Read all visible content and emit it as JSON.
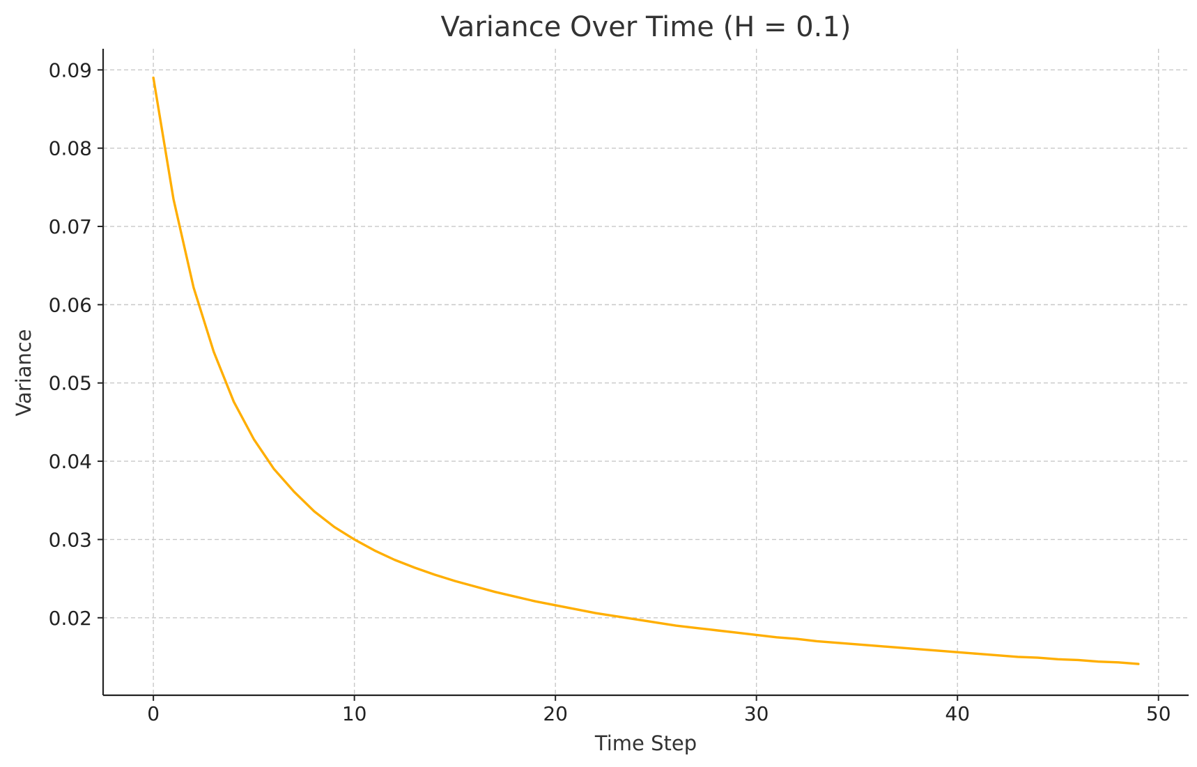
{
  "chart_data": {
    "type": "line",
    "title": "Variance Over Time (H = 0.1)",
    "xlabel": "Time Step",
    "ylabel": "Variance",
    "xlim": [
      -2.5,
      51.5
    ],
    "ylim": [
      0.0101,
      0.0927
    ],
    "xticks": [
      0,
      10,
      20,
      30,
      40,
      50
    ],
    "xtick_labels": [
      "0",
      "10",
      "20",
      "30",
      "40",
      "50"
    ],
    "yticks": [
      0.02,
      0.03,
      0.04,
      0.05,
      0.06,
      0.07,
      0.08,
      0.09
    ],
    "ytick_labels": [
      "0.02",
      "0.03",
      "0.04",
      "0.05",
      "0.06",
      "0.07",
      "0.08",
      "0.09"
    ],
    "grid": true,
    "series": [
      {
        "color": "#FFAE00",
        "x": [
          0,
          1,
          2,
          3,
          4,
          5,
          6,
          7,
          8,
          9,
          10,
          11,
          12,
          13,
          14,
          15,
          16,
          17,
          18,
          19,
          20,
          21,
          22,
          23,
          24,
          25,
          26,
          27,
          28,
          29,
          30,
          31,
          32,
          33,
          34,
          35,
          36,
          37,
          38,
          39,
          40,
          41,
          42,
          43,
          44,
          45,
          46,
          47,
          48,
          49
        ],
        "y": [
          0.089,
          0.0735,
          0.0622,
          0.054,
          0.0476,
          0.0428,
          0.039,
          0.0361,
          0.0336,
          0.0316,
          0.03,
          0.0286,
          0.0274,
          0.0264,
          0.0255,
          0.0247,
          0.024,
          0.0233,
          0.0227,
          0.0221,
          0.0216,
          0.0211,
          0.0206,
          0.0202,
          0.0198,
          0.0194,
          0.019,
          0.0187,
          0.0184,
          0.0181,
          0.0178,
          0.0175,
          0.0173,
          0.017,
          0.0168,
          0.0166,
          0.0164,
          0.0162,
          0.016,
          0.0158,
          0.0156,
          0.0154,
          0.0152,
          0.015,
          0.0149,
          0.0147,
          0.0146,
          0.0144,
          0.0143,
          0.0141
        ]
      }
    ]
  }
}
